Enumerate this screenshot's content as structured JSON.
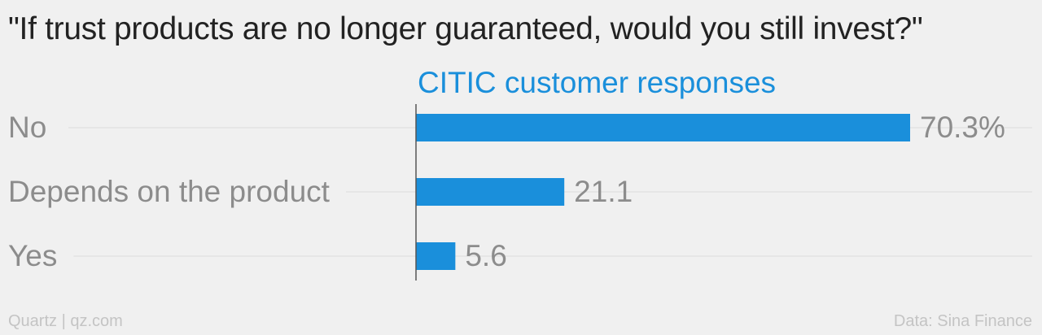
{
  "title": "\"If trust products are no longer guaranteed, would you still invest?\"",
  "footer": {
    "brand": "Quartz | qz.com",
    "source": "Data: Sina Finance"
  },
  "colors": {
    "bar": "#1a8fdb",
    "series_label": "#1a8fdb",
    "category_label": "#8c8c8c",
    "value_label": "#8c8c8c",
    "gridline": "#dcdcdc",
    "axis": "#555555"
  },
  "chart_data": {
    "type": "bar",
    "orientation": "horizontal",
    "categories": [
      "No",
      "Depends on the product",
      "Yes"
    ],
    "series": [
      {
        "name": "CITIC customer responses",
        "values": [
          70.3,
          21.1,
          5.6
        ],
        "value_labels": [
          "70.3%",
          "21.1",
          "5.6"
        ]
      }
    ],
    "xlim": [
      0,
      70.3
    ],
    "grid": true,
    "legend": "none"
  }
}
